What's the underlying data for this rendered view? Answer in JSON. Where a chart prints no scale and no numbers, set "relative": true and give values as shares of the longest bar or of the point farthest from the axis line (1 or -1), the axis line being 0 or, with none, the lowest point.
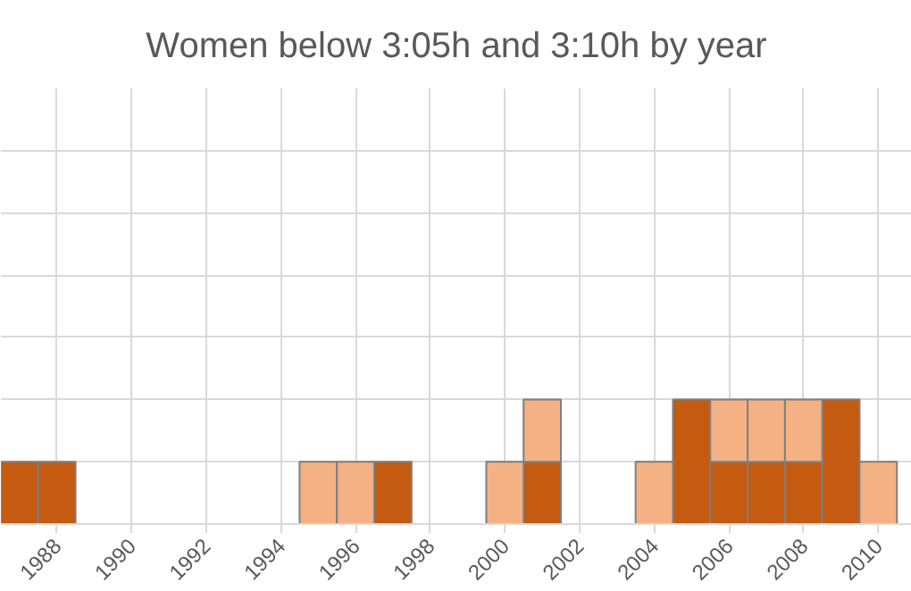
{
  "chart_data": {
    "type": "bar",
    "title": "Women below 3:05h and 3:10h by year",
    "relative": true,
    "stacked": true,
    "grid": true,
    "x": [
      1987,
      1988,
      1995,
      1996,
      1997,
      2000,
      2001,
      2004,
      2005,
      2006,
      2007,
      2008,
      2009,
      2010
    ],
    "xlim": [
      1986.5,
      2010.9
    ],
    "xticks": [
      1988,
      1990,
      1992,
      1994,
      1996,
      1998,
      2000,
      2002,
      2004,
      2006,
      2008,
      2010
    ],
    "series": [
      {
        "color": "#c55a11",
        "values": [
          0.5,
          0.5,
          null,
          null,
          0.5,
          null,
          0.5,
          null,
          1,
          0.5,
          0.5,
          0.5,
          1,
          null
        ]
      },
      {
        "color": "#f4b183",
        "values": [
          null,
          null,
          0.5,
          0.5,
          null,
          0.5,
          0.5,
          0.5,
          null,
          0.5,
          0.5,
          0.5,
          null,
          0.5
        ]
      }
    ]
  }
}
